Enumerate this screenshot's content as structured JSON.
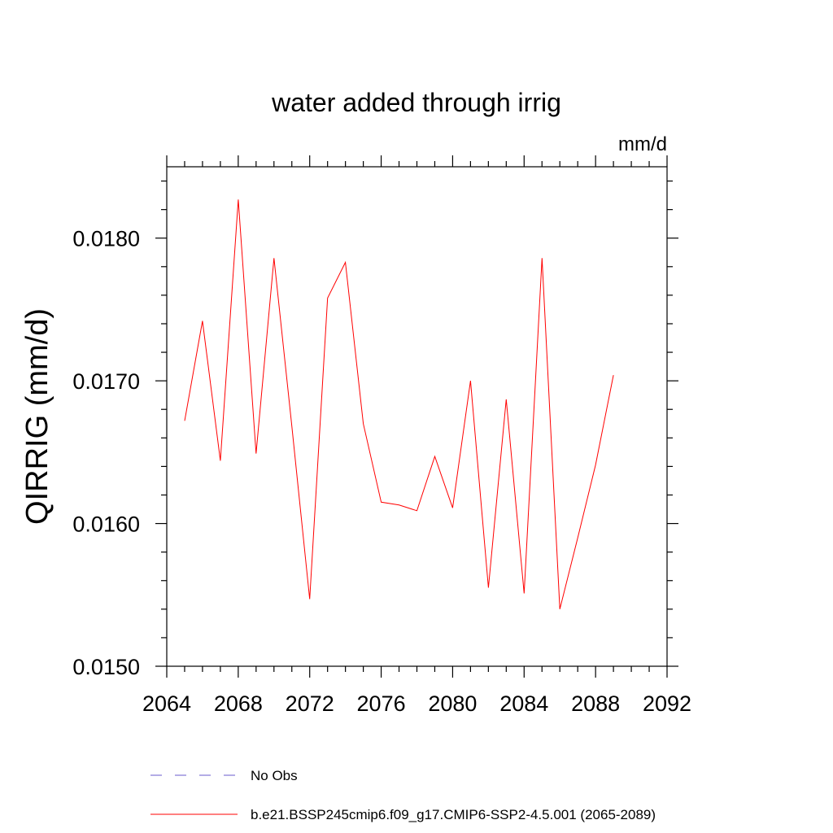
{
  "chart_data": {
    "type": "line",
    "title": "water added through irrig",
    "units_label": "mm/d",
    "ylabel": "QIRRIG  (mm/d)",
    "xlabel": "",
    "xlim": [
      2064,
      2092
    ],
    "ylim": [
      0.015,
      0.0185
    ],
    "x_ticks": [
      2064,
      2068,
      2072,
      2076,
      2080,
      2084,
      2088,
      2092
    ],
    "x_tick_labels": [
      "2064",
      "2068",
      "2072",
      "2076",
      "2080",
      "2084",
      "2088",
      "2092"
    ],
    "y_ticks": [
      0.015,
      0.016,
      0.017,
      0.018
    ],
    "y_tick_labels": [
      "0.0150",
      "0.0160",
      "0.0170",
      "0.0180"
    ],
    "grid": false,
    "legend_position": "bottom",
    "series": [
      {
        "name": "b.e21.BSSP245cmip6.f09_g17.CMIP6-SSP2-4.5.001 (2065-2089)",
        "color": "#ff0000",
        "style": "solid",
        "x": [
          2065,
          2066,
          2067,
          2068,
          2069,
          2070,
          2071,
          2072,
          2073,
          2074,
          2075,
          2076,
          2077,
          2078,
          2079,
          2080,
          2081,
          2082,
          2083,
          2084,
          2085,
          2086,
          2087,
          2088,
          2089
        ],
        "values": [
          0.01672,
          0.01742,
          0.01644,
          0.01827,
          0.01649,
          0.01786,
          0.01668,
          0.01547,
          0.01758,
          0.01783,
          0.0167,
          0.01615,
          0.01613,
          0.01609,
          0.01647,
          0.01611,
          0.017,
          0.01555,
          0.01687,
          0.01551,
          0.01786,
          0.0154,
          0.0159,
          0.01641,
          0.01704
        ]
      }
    ],
    "legend": [
      {
        "label": "No Obs",
        "color": "#6a5acd",
        "style": "dashed"
      },
      {
        "label": "b.e21.BSSP245cmip6.f09_g17.CMIP6-SSP2-4.5.001 (2065-2089)",
        "color": "#ff0000",
        "style": "solid"
      }
    ]
  }
}
